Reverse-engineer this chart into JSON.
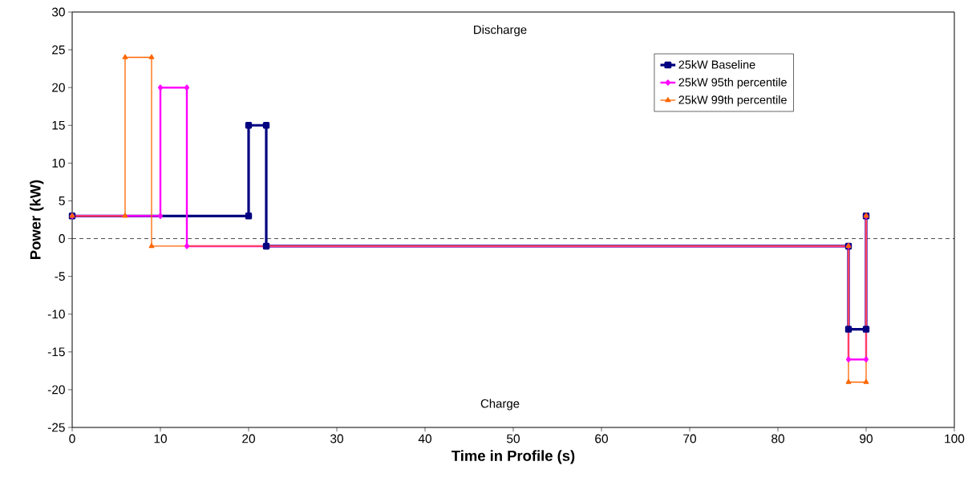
{
  "chart_data": {
    "type": "line",
    "xlabel": "Time in Profile (s)",
    "ylabel": "Power (kW)",
    "annotations": [
      "Discharge",
      "Charge"
    ],
    "xlim": [
      0,
      100
    ],
    "ylim": [
      -25,
      30
    ],
    "xticks": [
      0,
      10,
      20,
      30,
      40,
      50,
      60,
      70,
      80,
      90,
      100
    ],
    "yticks": [
      -25,
      -20,
      -15,
      -10,
      -5,
      0,
      5,
      10,
      15,
      20,
      25,
      30
    ],
    "grid": false,
    "legend": "top right",
    "line_style": "solid",
    "ref_lines": [
      {
        "axis": "y",
        "value": 0,
        "line_style": "dashed",
        "color": "#000000"
      }
    ],
    "series": [
      {
        "name": "25kW Baseline",
        "color": "#000080",
        "marker": "square",
        "x": [
          0,
          20,
          20,
          22,
          22,
          88,
          88,
          90,
          90
        ],
        "values": [
          3,
          3,
          15,
          15,
          -1,
          -1,
          -12,
          -12,
          3
        ]
      },
      {
        "name": "25kW 95th percentile",
        "color": "#ff00ff",
        "marker": "diamond",
        "x": [
          0,
          10,
          10,
          13,
          13,
          88,
          88,
          90,
          90
        ],
        "values": [
          3,
          3,
          20,
          20,
          -1,
          -1,
          -16,
          -16,
          3
        ]
      },
      {
        "name": "25kW 99th percentile",
        "color": "#ff6600",
        "marker": "triangle",
        "x": [
          0,
          6,
          6,
          9,
          9,
          88,
          88,
          90,
          90
        ],
        "values": [
          3,
          3,
          24,
          24,
          -1,
          -1,
          -19,
          -19,
          3
        ]
      }
    ]
  }
}
